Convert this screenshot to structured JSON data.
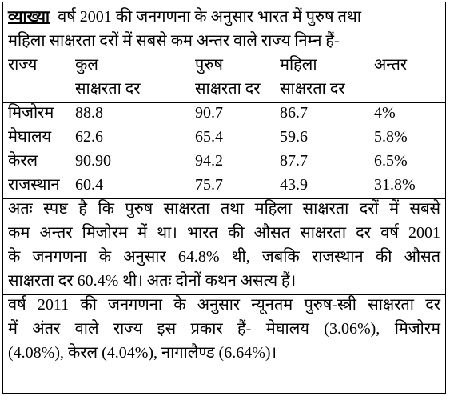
{
  "explanation": {
    "label": "व्याख्या",
    "intro": [
      "–वर्ष 2001 की जनगणना के अनुसार भारत में पुरुष तथा",
      "महिला साक्षरता दरों में सबसे कम अन्तर वाले राज्य निम्न हैं-"
    ]
  },
  "table": {
    "header": [
      [
        "राज्य"
      ],
      [
        "कुल",
        "साक्षरता दर"
      ],
      [
        "पुरुष",
        "साक्षरता दर"
      ],
      [
        "महिला",
        "साक्षरता दर"
      ],
      [
        "अन्तर"
      ]
    ],
    "rows": [
      [
        "मिजोरम",
        "88.8",
        "90.7",
        "86.7",
        "4%"
      ],
      [
        "मेघालय",
        "62.6",
        "65.4",
        "59.6",
        "5.8%"
      ],
      [
        "केरल",
        "90.90",
        "94.2",
        "87.7",
        "6.5%"
      ],
      [
        "राजस्थान",
        "60.4",
        "75.7",
        "43.9",
        "31.8%"
      ]
    ]
  },
  "conclusion": [
    "अतः स्पष्ट है कि पुरुष साक्षरता तथा महिला साक्षरता दरों में सबसे",
    "कम अन्तर मिजोरम में था। भारत की औसत साक्षरता दर वर्ष 2001",
    "के जनगणना के अनुसार 64.8% थी, जबकि राजस्थान की औसत",
    "साक्षरता दर 60.4% थी। अतः दोनों कथन असत्य हैं।"
  ],
  "note": [
    "वर्ष 2011 की जनगणना के अनुसार न्यूनतम पुरुष-स्त्री साक्षरता दर",
    "में अंतर वाले राज्य इस प्रकार हैं- मेघालय (3.06%), मिजोरम",
    "(4.08%), केरल (4.04%), नागालैण्ड (6.64%)।"
  ]
}
